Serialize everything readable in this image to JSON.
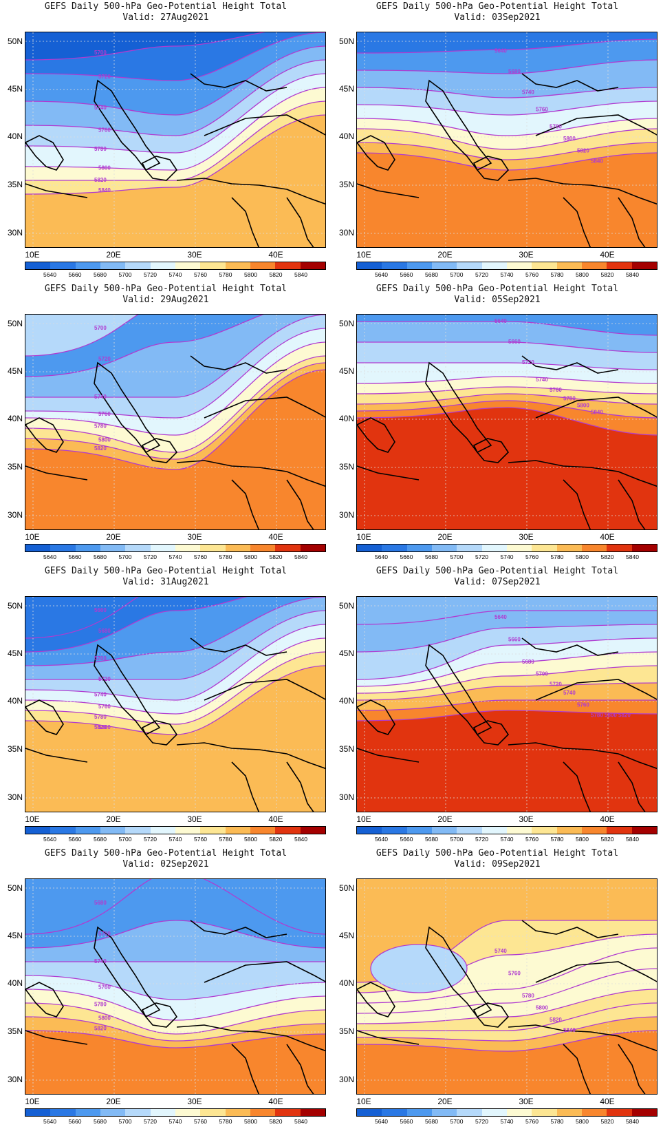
{
  "palette": [
    "#1560d4",
    "#2a78e4",
    "#4d99ef",
    "#82baf5",
    "#b5d9fa",
    "#e2f6fd",
    "#fdfad2",
    "#fde693",
    "#fbbb55",
    "#f8862d",
    "#e1340f",
    "#a40000"
  ],
  "contour_color": "#b03bd0",
  "coast_color": "#000000",
  "colorbar_labels": [
    "5640",
    "5660",
    "5680",
    "5700",
    "5720",
    "5740",
    "5760",
    "5780",
    "5800",
    "5820",
    "5840"
  ],
  "lat_labels": [
    "50N",
    "45N",
    "40N",
    "35N",
    "30N"
  ],
  "lon_labels": [
    "10E",
    "20E",
    "30E",
    "40E"
  ],
  "panels": [
    {
      "title": "GEFS Daily 500-hPa Geo-Potential Height Total",
      "valid": "Valid: 27Aug2021"
    },
    {
      "title": "GEFS Daily 500-hPa Geo-Potential Height Total",
      "valid": "Valid: 03Sep2021"
    },
    {
      "title": "GEFS Daily 500-hPa Geo-Potential Height Total",
      "valid": "Valid: 29Aug2021"
    },
    {
      "title": "GEFS Daily 500-hPa Geo-Potential Height Total",
      "valid": "Valid: 05Sep2021"
    },
    {
      "title": "GEFS Daily 500-hPa Geo-Potential Height Total",
      "valid": "Valid: 31Aug2021"
    },
    {
      "title": "GEFS Daily 500-hPa Geo-Potential Height Total",
      "valid": "Valid: 07Sep2021"
    },
    {
      "title": "GEFS Daily 500-hPa Geo-Potential Height Total",
      "valid": "Valid: 02Sep2021"
    },
    {
      "title": "GEFS Daily 500-hPa Geo-Potential Height Total",
      "valid": "Valid: 09Sep2021"
    }
  ],
  "contour_labels": [
    [
      "5700",
      "5720",
      "5740",
      "5760",
      "5780",
      "5800",
      "5820",
      "5840"
    ],
    [
      "5640",
      "5680",
      "5740",
      "5760",
      "5780",
      "5800",
      "5820",
      "5840"
    ],
    [
      "5700",
      "5720",
      "5740",
      "5760",
      "5780",
      "5800",
      "5820"
    ],
    [
      "5640",
      "5660",
      "5720",
      "5740",
      "5760",
      "5780",
      "5800",
      "5840"
    ],
    [
      "5660",
      "5680",
      "5700",
      "5720",
      "5740",
      "5760",
      "5780",
      "5800",
      "5820"
    ],
    [
      "5640",
      "5660",
      "5680",
      "5700",
      "5720",
      "5740",
      "5760",
      "5780",
      "5800",
      "5820"
    ],
    [
      "5680",
      "5700",
      "5740",
      "5760",
      "5780",
      "5800",
      "5820"
    ],
    [
      "5740",
      "5760",
      "5780",
      "5800",
      "5820",
      "5840"
    ]
  ]
}
